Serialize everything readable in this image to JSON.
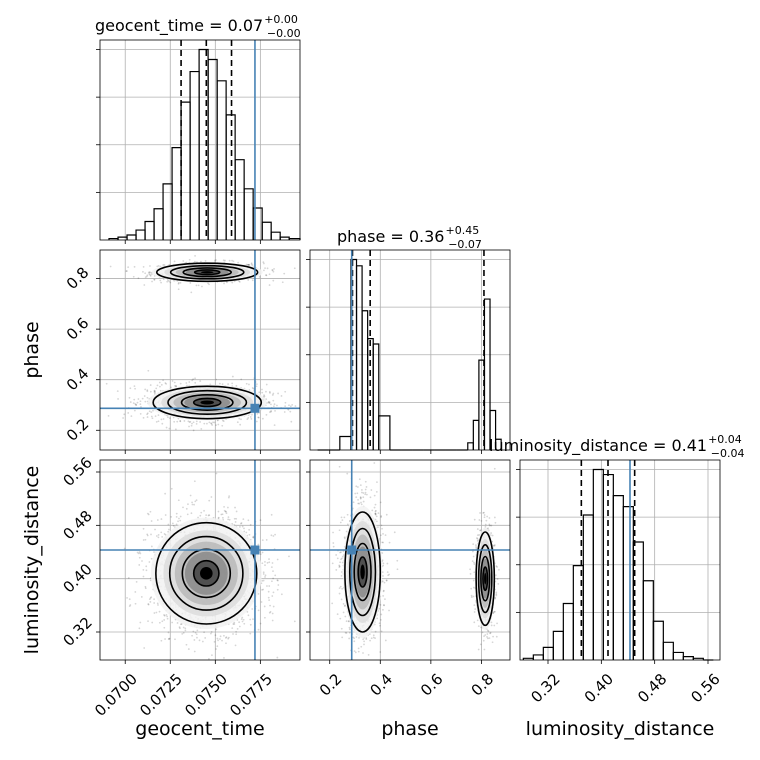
{
  "chart_data": {
    "type": "corner",
    "parameters": [
      "geocent_time",
      "phase",
      "luminosity_distance"
    ],
    "truths": {
      "geocent_time": 0.0772,
      "phase": 0.287,
      "luminosity_distance": 0.443
    },
    "ranges": {
      "geocent_time": [
        0.0686,
        0.0797
      ],
      "phase": [
        0.122,
        0.913
      ],
      "luminosity_distance": [
        0.278,
        0.578
      ]
    },
    "ticks": {
      "geocent_time": [
        "0.0700",
        "0.0725",
        "0.0750",
        "0.0775"
      ],
      "phase_x": [
        "0.2",
        "0.4",
        "0.6",
        "0.8"
      ],
      "phase_y": [
        "0.2",
        "0.4",
        "0.6",
        "0.8"
      ],
      "luminosity_distance": [
        "0.32",
        "0.40",
        "0.48",
        "0.56"
      ]
    },
    "titles": {
      "geocent_time": {
        "name": "geocent_time",
        "eq": " = ",
        "value": "0.07",
        "plus": "+0.00",
        "minus": "−0.00"
      },
      "phase": {
        "name": "phase",
        "eq": " = ",
        "value": "0.36",
        "plus": "+0.45",
        "minus": "−0.07"
      },
      "luminosity_distance": {
        "name": "luminosity_distance",
        "eq": " = ",
        "value": "0.41",
        "plus": "+0.04",
        "minus": "−0.04"
      }
    },
    "quantiles": {
      "geocent_time": [
        0.0731,
        0.0745,
        0.0759
      ],
      "phase": [
        0.29,
        0.36,
        0.81
      ],
      "luminosity_distance": [
        0.37,
        0.41,
        0.45
      ]
    },
    "histograms": {
      "geocent_time": {
        "edges": [
          0.0691,
          0.0696,
          0.0701,
          0.0706,
          0.0711,
          0.0716,
          0.0721,
          0.0726,
          0.0731,
          0.0736,
          0.0741,
          0.0746,
          0.0751,
          0.0756,
          0.0761,
          0.0766,
          0.0771,
          0.0776,
          0.0781,
          0.0786,
          0.0791,
          0.0797
        ],
        "counts": [
          2,
          4,
          7,
          14,
          26,
          44,
          79,
          130,
          194,
          237,
          268,
          254,
          224,
          176,
          113,
          72,
          45,
          25,
          11,
          4,
          2
        ]
      },
      "phase": {
        "edges": [
          0.152,
          0.196,
          0.24,
          0.284,
          0.306,
          0.328,
          0.35,
          0.372,
          0.394,
          0.438,
          0.482,
          0.526,
          0.57,
          0.614,
          0.658,
          0.702,
          0.746,
          0.768,
          0.79,
          0.812,
          0.834,
          0.856,
          0.878
        ],
        "counts": [
          0,
          0,
          15,
          212,
          205,
          155,
          124,
          118,
          38,
          0,
          0,
          0,
          0,
          0,
          0,
          0,
          8,
          33,
          100,
          168,
          44,
          12
        ]
      },
      "luminosity_distance": {
        "edges": [
          0.283,
          0.298,
          0.313,
          0.328,
          0.343,
          0.358,
          0.373,
          0.388,
          0.403,
          0.418,
          0.433,
          0.448,
          0.463,
          0.478,
          0.493,
          0.508,
          0.523,
          0.538,
          0.553,
          0.568
        ],
        "counts": [
          2,
          6,
          15,
          34,
          67,
          112,
          172,
          226,
          220,
          195,
          182,
          140,
          94,
          46,
          21,
          9,
          4,
          2,
          0
        ]
      }
    },
    "clusters": {
      "phase_vs_geocent_time": [
        {
          "cx": 0.07455,
          "cy": 0.825,
          "sx": 0.0014,
          "sy": 0.018,
          "weight": 0.35
        },
        {
          "cx": 0.07455,
          "cy": 0.31,
          "sx": 0.0015,
          "sy": 0.032,
          "weight": 0.65
        }
      ],
      "luminosity_distance_vs_geocent_time": [
        {
          "cx": 0.0745,
          "cy": 0.408,
          "sx": 0.0014,
          "sy": 0.038,
          "weight": 1.0
        }
      ],
      "luminosity_distance_vs_phase": [
        {
          "cx": 0.33,
          "cy": 0.41,
          "sx": 0.035,
          "sy": 0.045,
          "weight": 0.65
        },
        {
          "cx": 0.815,
          "cy": 0.4,
          "sx": 0.018,
          "sy": 0.035,
          "weight": 0.35
        }
      ]
    },
    "truth_color": "#4682b4",
    "grid": true
  }
}
